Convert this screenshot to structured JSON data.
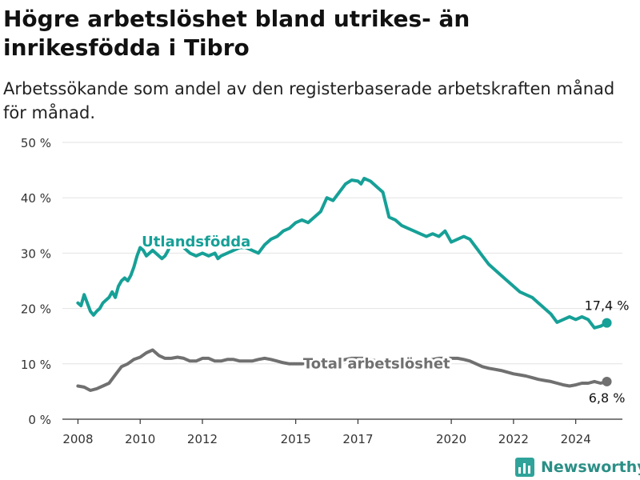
{
  "header": {
    "title": "Högre arbetslöshet bland utrikes- än inrikesfödda i Tibro",
    "subtitle": "Arbetssökande som andel av den registerbaserade arbetskraften månad för månad."
  },
  "brand": {
    "name": "Newsworthy"
  },
  "colors": {
    "foreign": "#16a097",
    "total": "#707070",
    "grid": "#e2e2e2",
    "axis": "#333333"
  },
  "chart_data": {
    "type": "line",
    "title": "Högre arbetslöshet bland utrikes- än inrikesfödda i Tibro",
    "subtitle": "Arbetssökande som andel av den registerbaserade arbetskraften månad för månad.",
    "xlabel": "",
    "ylabel": "",
    "xlim": [
      2007.5,
      2025.5
    ],
    "ylim": [
      0,
      50
    ],
    "y_ticks": [
      0,
      10,
      20,
      30,
      40,
      50
    ],
    "y_tick_labels": [
      "0 %",
      "10 %",
      "20 %",
      "30 %",
      "40 %",
      "50 %"
    ],
    "x_ticks": [
      2008,
      2010,
      2012,
      2015,
      2017,
      2020,
      2022,
      2024
    ],
    "x_tick_labels": [
      "2008",
      "2010",
      "2012",
      "2015",
      "2017",
      "2020",
      "2022",
      "2024"
    ],
    "grid": true,
    "series": [
      {
        "name": "Utlandsfödda",
        "color": "#16a097",
        "end_label": "17,4 %",
        "x": [
          2008.0,
          2008.1,
          2008.2,
          2008.3,
          2008.4,
          2008.5,
          2008.6,
          2008.7,
          2008.8,
          2008.9,
          2009.0,
          2009.1,
          2009.2,
          2009.3,
          2009.4,
          2009.5,
          2009.6,
          2009.7,
          2009.8,
          2009.9,
          2010.0,
          2010.1,
          2010.2,
          2010.3,
          2010.4,
          2010.5,
          2010.6,
          2010.7,
          2010.8,
          2010.9,
          2011.0,
          2011.2,
          2011.4,
          2011.6,
          2011.8,
          2012.0,
          2012.2,
          2012.4,
          2012.5,
          2012.6,
          2012.8,
          2013.0,
          2013.2,
          2013.4,
          2013.6,
          2013.8,
          2014.0,
          2014.2,
          2014.4,
          2014.6,
          2014.8,
          2015.0,
          2015.2,
          2015.4,
          2015.6,
          2015.8,
          2016.0,
          2016.2,
          2016.4,
          2016.6,
          2016.8,
          2017.0,
          2017.1,
          2017.2,
          2017.4,
          2017.6,
          2017.8,
          2018.0,
          2018.2,
          2018.4,
          2018.6,
          2018.8,
          2019.0,
          2019.2,
          2019.4,
          2019.6,
          2019.8,
          2020.0,
          2020.2,
          2020.4,
          2020.6,
          2020.8,
          2021.0,
          2021.2,
          2021.4,
          2021.6,
          2021.8,
          2022.0,
          2022.2,
          2022.4,
          2022.6,
          2022.8,
          2023.0,
          2023.2,
          2023.4,
          2023.6,
          2023.8,
          2024.0,
          2024.2,
          2024.4,
          2024.6,
          2024.8,
          2025.0
        ],
        "values": [
          21.0,
          20.5,
          22.5,
          21.0,
          19.5,
          18.8,
          19.5,
          20.0,
          21.0,
          21.5,
          22.0,
          23.0,
          22.0,
          24.0,
          25.0,
          25.5,
          25.0,
          26.0,
          27.5,
          29.5,
          31.0,
          30.5,
          29.5,
          30.0,
          30.5,
          30.0,
          29.5,
          29.0,
          29.5,
          30.5,
          32.0,
          32.5,
          31.0,
          30.0,
          29.5,
          30.0,
          29.5,
          30.0,
          29.0,
          29.5,
          30.0,
          30.5,
          31.0,
          31.0,
          30.5,
          30.0,
          31.5,
          32.5,
          33.0,
          34.0,
          34.5,
          35.5,
          36.0,
          35.5,
          36.5,
          37.5,
          40.0,
          39.5,
          41.0,
          42.5,
          43.2,
          43.0,
          42.5,
          43.5,
          43.0,
          42.0,
          41.0,
          36.5,
          36.0,
          35.0,
          34.5,
          34.0,
          33.5,
          33.0,
          33.5,
          33.0,
          34.0,
          32.0,
          32.5,
          33.0,
          32.5,
          31.0,
          29.5,
          28.0,
          27.0,
          26.0,
          25.0,
          24.0,
          23.0,
          22.5,
          22.0,
          21.0,
          20.0,
          19.0,
          17.5,
          18.0,
          18.5,
          18.0,
          18.5,
          18.0,
          16.5,
          16.8,
          17.4
        ]
      },
      {
        "name": "Total arbetslöshet",
        "color": "#707070",
        "end_label": "6,8 %",
        "x": [
          2008.0,
          2008.2,
          2008.4,
          2008.6,
          2008.8,
          2009.0,
          2009.2,
          2009.4,
          2009.6,
          2009.8,
          2010.0,
          2010.2,
          2010.4,
          2010.6,
          2010.8,
          2011.0,
          2011.2,
          2011.4,
          2011.6,
          2011.8,
          2012.0,
          2012.2,
          2012.4,
          2012.6,
          2012.8,
          2013.0,
          2013.2,
          2013.4,
          2013.6,
          2013.8,
          2014.0,
          2014.2,
          2014.4,
          2014.6,
          2014.8,
          2015.0,
          2015.2,
          2015.4,
          2015.6,
          2015.8,
          2016.0,
          2016.2,
          2016.4,
          2016.6,
          2016.8,
          2017.0,
          2017.2,
          2017.4,
          2017.6,
          2017.8,
          2018.0,
          2018.2,
          2018.4,
          2018.6,
          2018.8,
          2019.0,
          2019.2,
          2019.4,
          2019.6,
          2019.8,
          2020.0,
          2020.2,
          2020.4,
          2020.6,
          2020.8,
          2021.0,
          2021.2,
          2021.4,
          2021.6,
          2021.8,
          2022.0,
          2022.2,
          2022.4,
          2022.6,
          2022.8,
          2023.0,
          2023.2,
          2023.4,
          2023.6,
          2023.8,
          2024.0,
          2024.2,
          2024.4,
          2024.6,
          2024.8,
          2025.0
        ],
        "values": [
          6.0,
          5.8,
          5.2,
          5.5,
          6.0,
          6.5,
          8.0,
          9.5,
          10.0,
          10.8,
          11.2,
          12.0,
          12.5,
          11.5,
          11.0,
          11.0,
          11.2,
          11.0,
          10.5,
          10.5,
          11.0,
          11.0,
          10.5,
          10.5,
          10.8,
          10.8,
          10.5,
          10.5,
          10.5,
          10.8,
          11.0,
          10.8,
          10.5,
          10.2,
          10.0,
          10.0,
          10.0,
          10.2,
          10.0,
          10.0,
          10.2,
          10.5,
          10.5,
          10.8,
          11.0,
          11.0,
          11.0,
          10.8,
          10.5,
          10.5,
          10.2,
          10.0,
          9.8,
          9.8,
          10.0,
          10.2,
          10.5,
          10.8,
          11.0,
          11.0,
          11.0,
          11.0,
          10.8,
          10.5,
          10.0,
          9.5,
          9.2,
          9.0,
          8.8,
          8.5,
          8.2,
          8.0,
          7.8,
          7.5,
          7.2,
          7.0,
          6.8,
          6.5,
          6.2,
          6.0,
          6.2,
          6.5,
          6.5,
          6.8,
          6.5,
          6.8
        ]
      }
    ],
    "annotations": [
      {
        "text": "Utlandsfödda",
        "x": 2011.8,
        "y": 31.2,
        "color": "#16a097"
      },
      {
        "text": "Total arbetslöshet",
        "x": 2017.6,
        "y": 9.2,
        "color": "#707070"
      }
    ]
  }
}
